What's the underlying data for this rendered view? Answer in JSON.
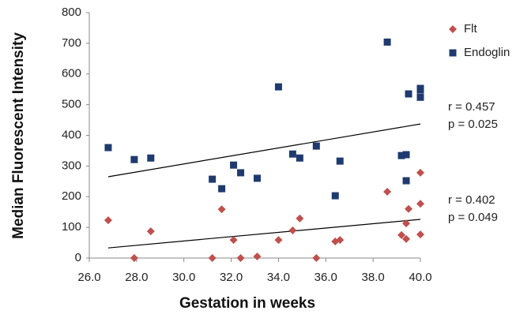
{
  "chart_data": {
    "type": "scatter",
    "xlabel": "Gestation in weeks",
    "ylabel": "Median Fluorescent Intensity",
    "xlim": [
      26,
      40
    ],
    "xticks": [
      {
        "value": 26,
        "label": "26.0"
      },
      {
        "value": 28,
        "label": "28.0"
      },
      {
        "value": 30,
        "label": "30.0"
      },
      {
        "value": 32,
        "label": "32.0"
      },
      {
        "value": 34,
        "label": "34.0"
      },
      {
        "value": 36,
        "label": "36.0"
      },
      {
        "value": 38,
        "label": "38.0"
      },
      {
        "value": 40,
        "label": "40.0"
      }
    ],
    "ylim": [
      0,
      800
    ],
    "yticks": [
      0,
      100,
      200,
      300,
      400,
      500,
      600,
      700,
      800
    ],
    "grid": false,
    "legend": "upper right",
    "series": [
      {
        "name": "Flt",
        "color": "#c0504d",
        "marker": "diamond",
        "x": [
          26.8,
          27.9,
          28.6,
          31.2,
          31.6,
          32.1,
          32.4,
          33.1,
          34.0,
          34.6,
          34.9,
          35.6,
          36.4,
          36.6,
          38.6,
          39.2,
          39.4,
          39.4,
          39.5,
          40.0,
          40.0,
          40.0
        ],
        "values": [
          123,
          0,
          87,
          0,
          159,
          59,
          0,
          5,
          59,
          90,
          129,
          0,
          54,
          59,
          216,
          75,
          62,
          113,
          160,
          278,
          177,
          77
        ],
        "trend": {
          "x": [
            26.8,
            40.0
          ],
          "values": [
            33,
            126
          ]
        }
      },
      {
        "name": "Endoglin",
        "color": "#1f3a6e",
        "marker": "square",
        "x": [
          26.8,
          27.9,
          28.6,
          31.2,
          31.6,
          32.1,
          32.4,
          33.1,
          34.0,
          34.6,
          34.9,
          35.6,
          36.4,
          36.6,
          38.6,
          39.2,
          39.4,
          39.4,
          39.5,
          40.0,
          40.0,
          40.0
        ],
        "values": [
          360,
          321,
          326,
          257,
          226,
          303,
          278,
          260,
          558,
          339,
          326,
          365,
          203,
          316,
          704,
          334,
          252,
          337,
          535,
          548,
          553,
          524
        ],
        "trend": {
          "x": [
            26.8,
            40.0
          ],
          "values": [
            265,
            437
          ]
        }
      }
    ],
    "annotations": [
      "r = 0.457",
      "p = 0.025",
      "r = 0.402",
      "p = 0.049"
    ]
  }
}
